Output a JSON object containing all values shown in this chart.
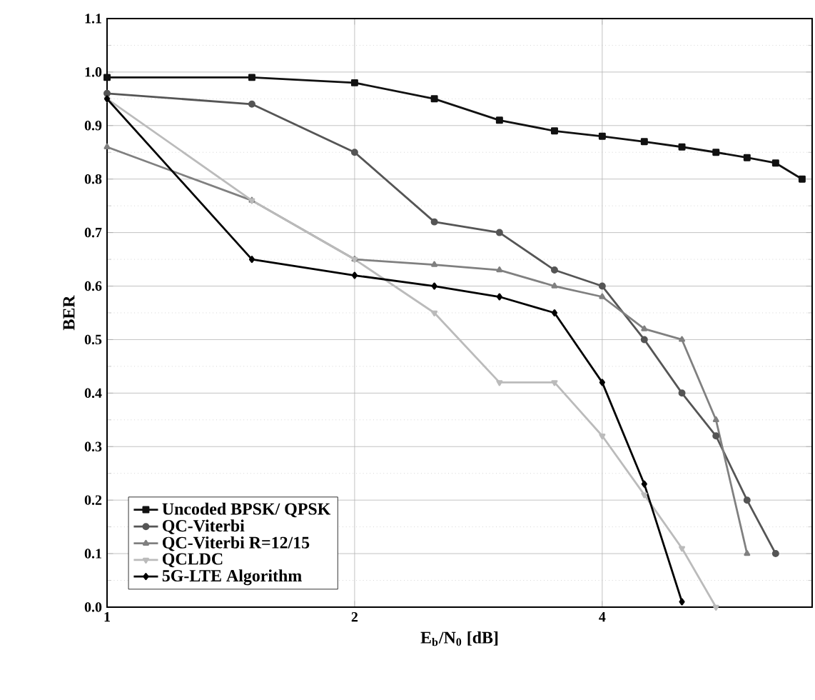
{
  "chart_data": {
    "type": "line",
    "xlabel": "E$_{b}$/N$_{0}$ [dB]",
    "ylabel": "BER",
    "log": "x",
    "xlim": [
      1,
      7.2
    ],
    "xticks": [
      1,
      2,
      4
    ],
    "ylim": [
      0,
      1.1
    ],
    "yticks": [
      {
        "value": 0,
        "label": "0.0"
      },
      {
        "value": 0.1,
        "label": "0.1"
      },
      {
        "value": 0.2,
        "label": "0.2"
      },
      {
        "value": 0.3,
        "label": "0.3"
      },
      {
        "value": 0.4,
        "label": "0.4"
      },
      {
        "value": 0.5,
        "label": "0.5"
      },
      {
        "value": 0.6,
        "label": "0.6"
      },
      {
        "value": 0.7,
        "label": "0.7"
      },
      {
        "value": 0.8,
        "label": "0.8"
      },
      {
        "value": 0.9,
        "label": "0.9"
      },
      {
        "value": 1,
        "label": "1.0"
      },
      {
        "value": 1.1,
        "label": "1.1"
      }
    ],
    "grid": true,
    "legend": "bottom left",
    "line_style": "solid",
    "series": [
      {
        "name": "Uncoded BPSK/ QPSK",
        "color": "#111111",
        "marker": "square",
        "x": [
          1,
          1.5,
          2,
          2.5,
          3,
          3.5,
          4,
          4.5,
          5,
          5.5,
          6,
          6.5,
          7
        ],
        "values": [
          0.99,
          0.99,
          0.98,
          0.95,
          0.91,
          0.89,
          0.88,
          0.87,
          0.86,
          0.85,
          0.84,
          0.83,
          0.8
        ]
      },
      {
        "name": "QC-Viterbi",
        "color": "#555555",
        "marker": "circle",
        "x": [
          1,
          1.5,
          2,
          2.5,
          3,
          3.5,
          4,
          4.5,
          5,
          5.5,
          6,
          6.5
        ],
        "values": [
          0.96,
          0.94,
          0.85,
          0.72,
          0.7,
          0.63,
          0.6,
          0.5,
          0.4,
          0.32,
          0.2,
          0.1
        ]
      },
      {
        "name": "QC-Viterbi R=12/15",
        "color": "#808080",
        "marker": "triangle",
        "x": [
          1,
          1.5,
          2,
          2.5,
          3,
          3.5,
          4,
          4.5,
          5,
          5.5,
          6
        ],
        "values": [
          0.86,
          0.76,
          0.65,
          0.64,
          0.63,
          0.6,
          0.58,
          0.52,
          0.5,
          0.35,
          0.1
        ]
      },
      {
        "name": "QCLDC",
        "color": "#bbbbbb",
        "marker": "triangle down",
        "x": [
          1,
          1.5,
          2,
          2.5,
          3,
          3.5,
          4,
          4.5,
          5,
          5.5
        ],
        "values": [
          0.95,
          0.76,
          0.65,
          0.55,
          0.42,
          0.42,
          0.32,
          0.21,
          0.11,
          0.0
        ]
      },
      {
        "name": "5G-LTE Algorithm",
        "color": "#000000",
        "marker": "diamond",
        "x": [
          1,
          1.5,
          2,
          2.5,
          3,
          3.5,
          4,
          4.5,
          5
        ],
        "values": [
          0.95,
          0.65,
          0.62,
          0.6,
          0.58,
          0.55,
          0.42,
          0.23,
          0.01
        ]
      }
    ]
  }
}
